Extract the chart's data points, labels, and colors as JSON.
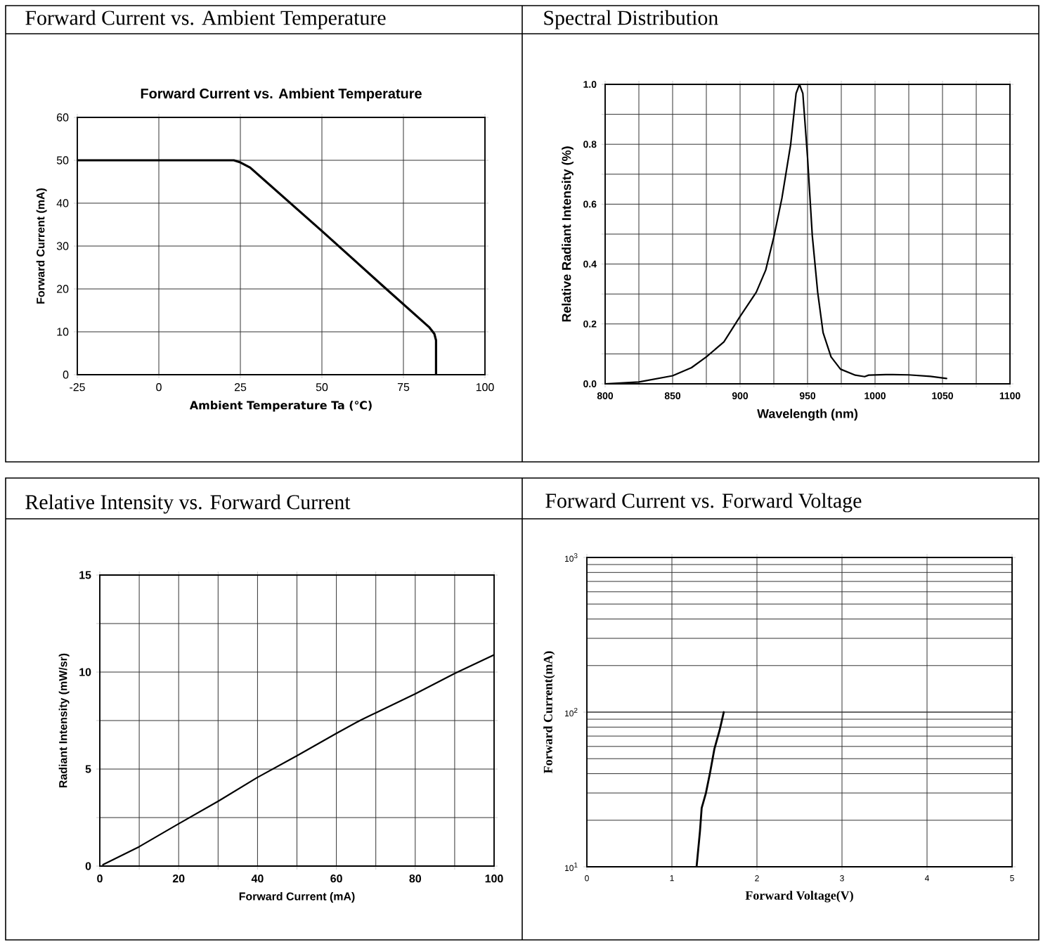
{
  "chart_data": [
    {
      "type": "line",
      "title": "Forward Current vs. Ambient Temperature",
      "subtitle": "Forward Current vs. Ambient Temperature",
      "xlabel": "Ambient Temperature Ta (℃)",
      "ylabel": "Forward Current (mA)",
      "xlim": [
        -25,
        100
      ],
      "ylim": [
        0,
        60
      ],
      "xticks": [
        -25,
        0,
        25,
        50,
        75,
        100
      ],
      "yticks": [
        0,
        10,
        20,
        30,
        40,
        50,
        60
      ],
      "grid": true,
      "color": "#000000",
      "x": [
        -25,
        0,
        20,
        23,
        25,
        28,
        50,
        69,
        83,
        84.5,
        85,
        85
      ],
      "values": [
        50,
        50,
        50,
        50,
        49.5,
        48.3,
        33.5,
        20.5,
        11,
        9.5,
        8,
        0
      ]
    },
    {
      "type": "line",
      "title": "Spectral Distribution",
      "xlabel": "Wavelength (nm)",
      "ylabel": "Relative Radiant Intensity (%)",
      "xlim": [
        800,
        1100
      ],
      "ylim": [
        0,
        1
      ],
      "xticks": [
        800,
        {
          "value": 825,
          "label": null
        },
        850,
        {
          "value": 875,
          "label": null
        },
        900,
        {
          "value": 925,
          "label": null
        },
        950,
        {
          "value": 975,
          "label": null
        },
        1000,
        {
          "value": 1025,
          "label": null
        },
        1050,
        {
          "value": 1075,
          "label": null
        },
        1100
      ],
      "yticks": [
        {
          "value": 0,
          "label": "0.0"
        },
        {
          "value": 0.1,
          "label": null
        },
        0.2,
        {
          "value": 0.3,
          "label": null
        },
        0.4,
        {
          "value": 0.5,
          "label": null
        },
        0.6,
        {
          "value": 0.7,
          "label": null
        },
        0.8,
        {
          "value": 0.9,
          "label": null
        },
        {
          "value": 1,
          "label": "1.0"
        }
      ],
      "grid": true,
      "color": "#000000",
      "x": [
        800,
        825,
        850,
        864,
        875,
        888,
        900,
        912,
        919,
        925,
        931,
        937.5,
        941.5,
        944,
        946.5,
        950,
        953.5,
        957.5,
        961.5,
        967.4,
        974.4,
        985.4,
        992.3,
        995.3,
        1008,
        1025,
        1041,
        1053
      ],
      "values": [
        0,
        0.006,
        0.027,
        0.054,
        0.09,
        0.14,
        0.225,
        0.306,
        0.38,
        0.49,
        0.62,
        0.8,
        0.97,
        1,
        0.97,
        0.755,
        0.495,
        0.306,
        0.171,
        0.09,
        0.049,
        0.029,
        0.024,
        0.029,
        0.031,
        0.03,
        0.025,
        0.018
      ]
    },
    {
      "type": "line",
      "title": "Relative Intensity vs. Forward Current",
      "xlabel": "Forward Current (mA)",
      "ylabel": "Radiant Intensity (mW/sr)",
      "xlim": [
        0,
        100
      ],
      "ylim": [
        0,
        15
      ],
      "xticks": [
        0,
        {
          "value": 10,
          "label": null
        },
        20,
        {
          "value": 30,
          "label": null
        },
        40,
        {
          "value": 50,
          "label": null
        },
        60,
        {
          "value": 70,
          "label": null
        },
        80,
        {
          "value": 90,
          "label": null
        },
        100
      ],
      "yticks": [
        0,
        {
          "value": 2.5,
          "label": null
        },
        5,
        {
          "value": 7.5,
          "label": null
        },
        10,
        {
          "value": 12.5,
          "label": null
        },
        15
      ],
      "grid": true,
      "color": "#000000",
      "x": [
        0.8,
        10,
        19.9,
        30.1,
        39.9,
        50.1,
        60,
        66.3,
        70.2,
        80,
        90,
        100
      ],
      "values": [
        0.07,
        1,
        2.17,
        3.35,
        4.56,
        5.7,
        6.84,
        7.54,
        7.92,
        8.88,
        9.93,
        10.89
      ]
    },
    {
      "type": "line",
      "title": "Forward Current vs. Forward Voltage",
      "xlabel": "Forward Voltage(V)",
      "ylabel": "Forward Current(mA)",
      "xlim": [
        0,
        5
      ],
      "ylim": [
        10,
        1000
      ],
      "log": "y",
      "xticks": [
        0,
        1,
        2,
        3,
        4,
        5
      ],
      "yticks": [
        {
          "value": 10,
          "label": "10$^{1}$"
        },
        {
          "value": 100,
          "label": "10$^{2}$"
        },
        {
          "value": 1000,
          "label": "10$^{3}$"
        }
      ],
      "grid": true,
      "color": "#000000",
      "x": [
        1.29,
        1.33,
        1.35,
        1.4,
        1.45,
        1.5,
        1.56,
        1.61
      ],
      "values": [
        10,
        17,
        24,
        30,
        41,
        58,
        76,
        100
      ]
    }
  ]
}
